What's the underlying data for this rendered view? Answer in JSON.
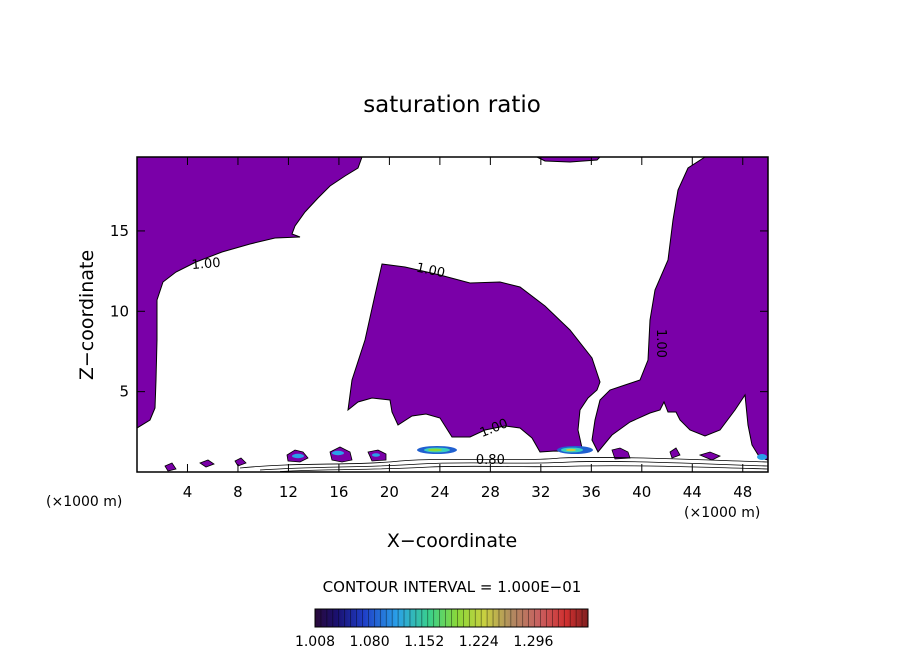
{
  "chart_data": {
    "type": "contour",
    "title": "saturation ratio",
    "xlabel": "X−coordinate",
    "ylabel": "Z−coordinate",
    "x_unit_left": "(×1000 m)",
    "x_unit_right": "(×1000 m)",
    "xlim": [
      0,
      50
    ],
    "ylim": [
      0,
      19.6
    ],
    "x_ticks": [
      4,
      8,
      12,
      16,
      20,
      24,
      28,
      32,
      36,
      40,
      44,
      48
    ],
    "y_ticks": [
      5,
      10,
      15
    ],
    "contour_labels": [
      {
        "text": "1.00",
        "x": 5.5,
        "y": 12.7,
        "rot": -5
      },
      {
        "text": "1.00",
        "x": 23.2,
        "y": 12.3,
        "rot": 12
      },
      {
        "text": "1.00",
        "x": 41.2,
        "y": 8.0,
        "rot": 90
      },
      {
        "text": "1.00",
        "x": 28.4,
        "y": 2.5,
        "rot": -22
      },
      {
        "text": "0.80",
        "x": 28.0,
        "y": 0.5,
        "rot": 0
      }
    ],
    "contour_interval_text": "CONTOUR INTERVAL = 1.000E−01",
    "colorbar": {
      "ticks": [
        "1.008",
        "1.080",
        "1.152",
        "1.224",
        "1.296"
      ],
      "vmin": 1.008,
      "vmax": 1.368
    },
    "colors": {
      "fill": "#7a00a8",
      "outline": "#000000"
    }
  }
}
